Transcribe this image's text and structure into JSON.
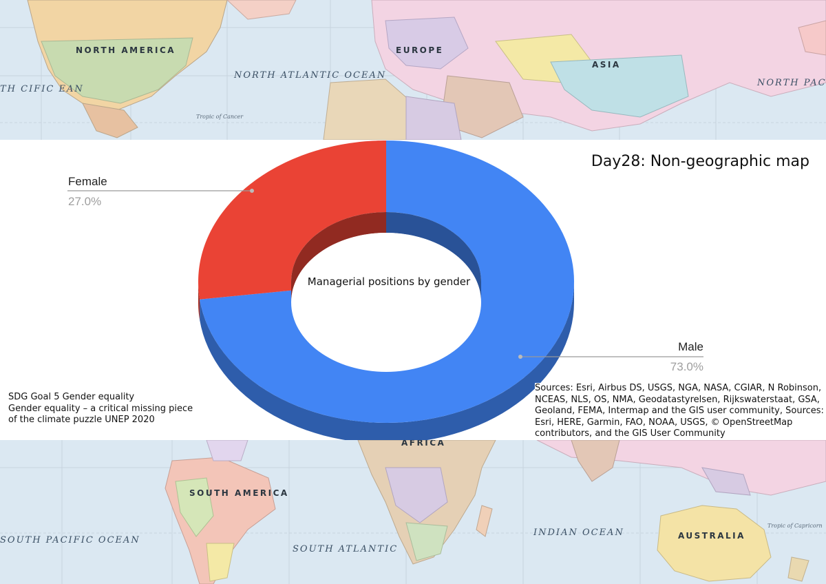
{
  "title": "Day28: Non-geographic map",
  "chart_data": {
    "type": "pie",
    "style": "3d-donut",
    "title": "Managerial positions by gender",
    "categories": [
      "Male",
      "Female"
    ],
    "values": [
      73.0,
      27.0
    ],
    "labels": [
      "73.0%",
      "27.0%"
    ],
    "colors": [
      "#4285f4",
      "#ea4335"
    ]
  },
  "map": {
    "labels": [
      {
        "name": "north-america",
        "text": "NORTH AMERICA",
        "kind": "continent"
      },
      {
        "name": "europe",
        "text": "EUROPE",
        "kind": "continent"
      },
      {
        "name": "asia",
        "text": "ASIA",
        "kind": "continent"
      },
      {
        "name": "north-atlantic",
        "text": "NORTH ATLANTIC OCEAN",
        "kind": "ocean"
      },
      {
        "name": "north-pacific",
        "text": "NORTH PACIFIC OCEAN",
        "kind": "ocean"
      },
      {
        "name": "north-pacific-left",
        "text": "TH CIFIC EAN",
        "kind": "ocean"
      },
      {
        "name": "tropic-cancer",
        "text": "Tropic of Cancer",
        "kind": "small"
      },
      {
        "name": "africa",
        "text": "AFRICA",
        "kind": "continent"
      },
      {
        "name": "south-america",
        "text": "SOUTH AMERICA",
        "kind": "continent"
      },
      {
        "name": "south-pacific",
        "text": "SOUTH PACIFIC OCEAN",
        "kind": "ocean"
      },
      {
        "name": "south-atlantic",
        "text": "SOUTH ATLANTIC",
        "kind": "ocean"
      },
      {
        "name": "indian-ocean",
        "text": "INDIAN OCEAN",
        "kind": "ocean"
      },
      {
        "name": "australia",
        "text": "AUSTRALIA",
        "kind": "continent"
      },
      {
        "name": "tropic-capricorn",
        "text": "Tropic of Capricorn",
        "kind": "small"
      }
    ]
  },
  "notes": {
    "left": [
      "SDG Goal 5 Gender equality",
      "Gender equality – a critical missing piece",
      "of the climate puzzle UNEP 2020"
    ],
    "right": "Sources: Esri, Airbus DS, USGS, NGA, NASA, CGIAR, N Robinson, NCEAS, NLS, OS, NMA, Geodatastyrelsen, Rijkswaterstaat, GSA, Geoland, FEMA, Intermap and the GIS user community, Sources: Esri, HERE, Garmin, FAO, NOAA, USGS, © OpenStreetMap contributors, and the GIS User Community"
  }
}
